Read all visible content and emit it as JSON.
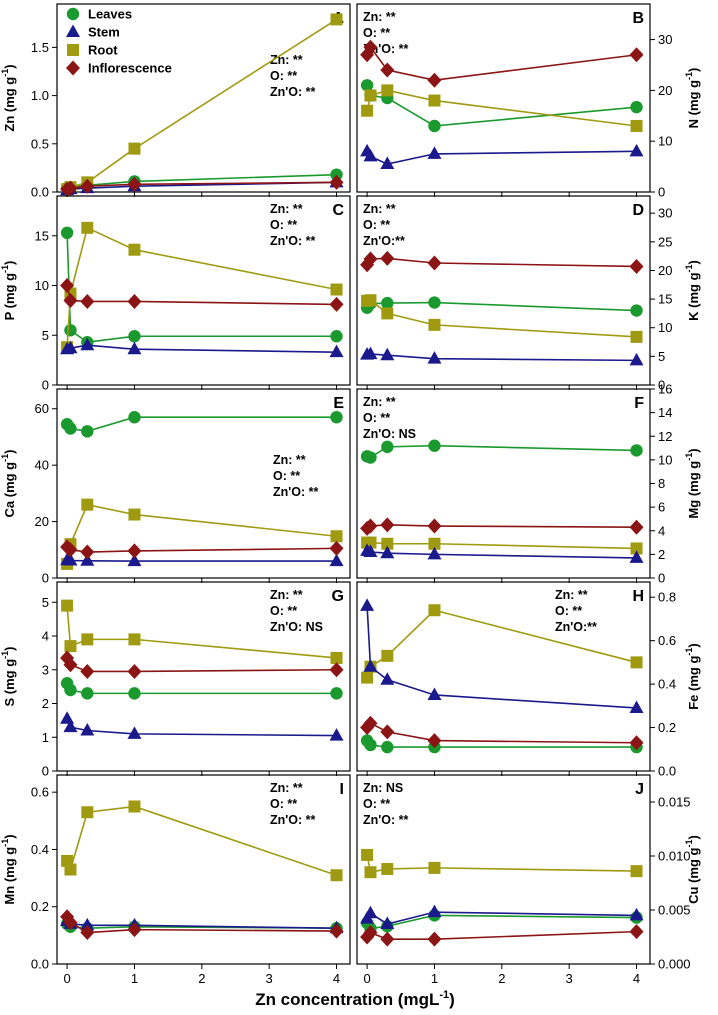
{
  "figure": {
    "xlabel": "Zn concentration (mgL",
    "xlabel_sup": "-1",
    "xlabel_close": ")",
    "x_ticks": [
      0,
      1,
      2,
      3,
      4
    ],
    "xlim": [
      -0.15,
      4.2
    ]
  },
  "legend": [
    {
      "series": "Leaves",
      "label": "Leaves",
      "color": "#1a9a2e",
      "marker": "circle"
    },
    {
      "series": "Stem",
      "label": "Stem",
      "color": "#1a1a8c",
      "marker": "triangle"
    },
    {
      "series": "Root",
      "label": "Root",
      "color": "#a09a10",
      "marker": "square"
    },
    {
      "series": "Inflorescence",
      "label": "Inflorescence",
      "color": "#8b1414",
      "marker": "diamond"
    }
  ],
  "chart_data": [
    {
      "type": "line",
      "panel": "A",
      "ylabel": "Zn (mg g",
      "ylabel_sup": "-1",
      "ylabel_close": ")",
      "axis_side": "left",
      "ylim": [
        0,
        1.95
      ],
      "yticks": [
        0.0,
        0.5,
        1.0,
        1.5
      ],
      "ytick_labels": [
        "0.0",
        "0.5",
        "1.0",
        "1.5"
      ],
      "stats": [
        "Zn: **",
        "O: **",
        "Zn'O: **"
      ],
      "stats_pos": "middle-right",
      "x": [
        0,
        0.05,
        0.3,
        1,
        4
      ],
      "series": [
        {
          "name": "Leaves",
          "values": [
            0.04,
            0.05,
            0.07,
            0.11,
            0.18
          ]
        },
        {
          "name": "Stem",
          "values": [
            0.02,
            0.03,
            0.04,
            0.06,
            0.1
          ]
        },
        {
          "name": "Root",
          "values": [
            0.03,
            0.05,
            0.1,
            0.45,
            1.79
          ]
        },
        {
          "name": "Inflorescence",
          "values": [
            0.03,
            0.04,
            0.06,
            0.08,
            0.1
          ]
        }
      ]
    },
    {
      "type": "line",
      "panel": "B",
      "ylabel": "N (mg g",
      "ylabel_sup": "-1",
      "ylabel_close": ")",
      "axis_side": "right",
      "ylim": [
        0,
        37
      ],
      "yticks": [
        0,
        10,
        20,
        30
      ],
      "ytick_labels": [
        "0",
        "10",
        "20",
        "30"
      ],
      "stats": [
        "Zn: **",
        "O: **",
        "Zn'O: **"
      ],
      "stats_pos": "top-left",
      "x": [
        0,
        0.05,
        0.3,
        1,
        4
      ],
      "series": [
        {
          "name": "Leaves",
          "values": [
            21,
            19,
            18.5,
            13,
            16.7
          ]
        },
        {
          "name": "Stem",
          "values": [
            8,
            7,
            5.5,
            7.5,
            8
          ]
        },
        {
          "name": "Root",
          "values": [
            16,
            19,
            20,
            18,
            13
          ]
        },
        {
          "name": "Inflorescence",
          "values": [
            27,
            28.5,
            24,
            22,
            27
          ]
        }
      ]
    },
    {
      "type": "line",
      "panel": "C",
      "ylabel": "P (mg g",
      "ylabel_sup": "-1",
      "ylabel_close": ")",
      "axis_side": "left",
      "ylim": [
        0,
        19
      ],
      "yticks": [
        0,
        5,
        10,
        15
      ],
      "ytick_labels": [
        "0",
        "5",
        "10",
        "15"
      ],
      "stats": [
        "Zn: **",
        "O: **",
        "Zn'O: **"
      ],
      "stats_pos": "top-right",
      "x": [
        0,
        0.05,
        0.3,
        1,
        4
      ],
      "series": [
        {
          "name": "Leaves",
          "values": [
            15.3,
            5.5,
            4.3,
            4.9,
            4.9
          ]
        },
        {
          "name": "Stem",
          "values": [
            3.6,
            3.7,
            4.0,
            3.6,
            3.3
          ]
        },
        {
          "name": "Root",
          "values": [
            3.8,
            9.2,
            15.8,
            13.6,
            9.6
          ]
        },
        {
          "name": "Inflorescence",
          "values": [
            10.0,
            8.5,
            8.4,
            8.4,
            8.1
          ]
        }
      ]
    },
    {
      "type": "line",
      "panel": "D",
      "ylabel": "K (mg g",
      "ylabel_sup": "-1",
      "ylabel_close": ")",
      "axis_side": "right",
      "ylim": [
        0,
        33
      ],
      "yticks": [
        0,
        5,
        10,
        15,
        20,
        25,
        30
      ],
      "ytick_labels": [
        "0",
        "5",
        "10",
        "15",
        "20",
        "25",
        "30"
      ],
      "stats": [
        "Zn: **",
        "O: **",
        "Zn'O:**"
      ],
      "stats_pos": "top-left",
      "x": [
        0,
        0.05,
        0.3,
        1,
        4
      ],
      "series": [
        {
          "name": "Leaves",
          "values": [
            13.5,
            14.2,
            14.3,
            14.4,
            13
          ]
        },
        {
          "name": "Stem",
          "values": [
            5.3,
            5.4,
            5.2,
            4.6,
            4.3
          ]
        },
        {
          "name": "Root",
          "values": [
            14.7,
            14.8,
            12.5,
            10.5,
            8.4
          ]
        },
        {
          "name": "Inflorescence",
          "values": [
            21,
            22,
            22.1,
            21.3,
            20.7
          ]
        }
      ]
    },
    {
      "type": "line",
      "panel": "E",
      "ylabel": "Ca (mg g",
      "ylabel_sup": "-1",
      "ylabel_close": ")",
      "axis_side": "left",
      "ylim": [
        0,
        67
      ],
      "yticks": [
        0,
        20,
        40,
        60
      ],
      "ytick_labels": [
        "0",
        "20",
        "40",
        "60"
      ],
      "stats": [
        "Zn: **",
        "O: **",
        "Zn'O: **"
      ],
      "stats_pos": "middle-right",
      "x": [
        0,
        0.05,
        0.3,
        1,
        4
      ],
      "series": [
        {
          "name": "Leaves",
          "values": [
            54.5,
            53,
            52,
            57,
            57
          ]
        },
        {
          "name": "Stem",
          "values": [
            6.3,
            6.2,
            6.1,
            6.0,
            6.0
          ]
        },
        {
          "name": "Root",
          "values": [
            5.0,
            12,
            26,
            22.5,
            14.8
          ]
        },
        {
          "name": "Inflorescence",
          "values": [
            11,
            10,
            9.2,
            9.6,
            10.5
          ]
        }
      ]
    },
    {
      "type": "line",
      "panel": "F",
      "ylabel": "Mg (mg g",
      "ylabel_sup": "-1",
      "ylabel_close": ")",
      "axis_side": "right",
      "ylim": [
        0,
        16
      ],
      "yticks": [
        0,
        2,
        4,
        6,
        8,
        10,
        12,
        14,
        16
      ],
      "ytick_labels": [
        "0",
        "2",
        "4",
        "6",
        "8",
        "10",
        "12",
        "14",
        "16"
      ],
      "stats": [
        "Zn: **",
        "O: **",
        "Zn'O: NS"
      ],
      "stats_pos": "top-left",
      "x": [
        0,
        0.05,
        0.3,
        1,
        4
      ],
      "series": [
        {
          "name": "Leaves",
          "values": [
            10.3,
            10.2,
            11.1,
            11.2,
            10.8
          ]
        },
        {
          "name": "Stem",
          "values": [
            2.3,
            2.2,
            2.1,
            2.0,
            1.7
          ]
        },
        {
          "name": "Root",
          "values": [
            3.0,
            3.0,
            2.9,
            2.9,
            2.5
          ]
        },
        {
          "name": "Inflorescence",
          "values": [
            4.2,
            4.4,
            4.5,
            4.4,
            4.3
          ]
        }
      ]
    },
    {
      "type": "line",
      "panel": "G",
      "ylabel": "S (mg g",
      "ylabel_sup": "-1",
      "ylabel_close": ")",
      "axis_side": "left",
      "ylim": [
        0,
        5.6
      ],
      "yticks": [
        0,
        1,
        2,
        3,
        4,
        5
      ],
      "ytick_labels": [
        "0",
        "1",
        "2",
        "3",
        "4",
        "5"
      ],
      "stats": [
        "Zn: **",
        "O: **",
        "Zn'O: NS"
      ],
      "stats_pos": "top-right",
      "x": [
        0,
        0.05,
        0.3,
        1,
        4
      ],
      "series": [
        {
          "name": "Leaves",
          "values": [
            2.6,
            2.4,
            2.3,
            2.3,
            2.3
          ]
        },
        {
          "name": "Stem",
          "values": [
            1.55,
            1.3,
            1.2,
            1.1,
            1.05
          ]
        },
        {
          "name": "Root",
          "values": [
            4.9,
            3.7,
            3.9,
            3.9,
            3.35
          ]
        },
        {
          "name": "Inflorescence",
          "values": [
            3.35,
            3.15,
            2.95,
            2.95,
            3.0
          ]
        }
      ]
    },
    {
      "type": "line",
      "panel": "H",
      "ylabel": "Fe (mg g",
      "ylabel_sup": "-1",
      "ylabel_close": ")",
      "axis_side": "right",
      "ylim": [
        0,
        0.87
      ],
      "yticks": [
        0.0,
        0.2,
        0.4,
        0.6,
        0.8
      ],
      "ytick_labels": [
        "0.0",
        "0.2",
        "0.4",
        "0.6",
        "0.8"
      ],
      "stats": [
        "Zn: **",
        "O: **",
        "Zn'O:**"
      ],
      "stats_pos": "top-right",
      "x": [
        0,
        0.05,
        0.3,
        1,
        4
      ],
      "series": [
        {
          "name": "Leaves",
          "values": [
            0.14,
            0.12,
            0.11,
            0.11,
            0.11
          ]
        },
        {
          "name": "Stem",
          "values": [
            0.76,
            0.48,
            0.42,
            0.35,
            0.29
          ]
        },
        {
          "name": "Root",
          "values": [
            0.43,
            0.48,
            0.53,
            0.74,
            0.5
          ]
        },
        {
          "name": "Inflorescence",
          "values": [
            0.2,
            0.22,
            0.18,
            0.14,
            0.13
          ]
        }
      ]
    },
    {
      "type": "line",
      "panel": "I",
      "ylabel": "Mn (mg g",
      "ylabel_sup": "-1",
      "ylabel_close": ")",
      "axis_side": "left",
      "ylim": [
        0,
        0.66
      ],
      "yticks": [
        0.0,
        0.2,
        0.4,
        0.6
      ],
      "ytick_labels": [
        "0.0",
        "0.2",
        "0.4",
        "0.6"
      ],
      "stats": [
        "Zn: **",
        "O: **",
        "Zn'O: **"
      ],
      "stats_pos": "top-right",
      "x": [
        0,
        0.05,
        0.3,
        1,
        4
      ],
      "series": [
        {
          "name": "Leaves",
          "values": [
            0.14,
            0.13,
            0.125,
            0.13,
            0.125
          ]
        },
        {
          "name": "Stem",
          "values": [
            0.15,
            0.14,
            0.135,
            0.135,
            0.125
          ]
        },
        {
          "name": "Root",
          "values": [
            0.36,
            0.33,
            0.53,
            0.55,
            0.31
          ]
        },
        {
          "name": "Inflorescence",
          "values": [
            0.165,
            0.145,
            0.11,
            0.12,
            0.115
          ]
        }
      ]
    },
    {
      "type": "line",
      "panel": "J",
      "ylabel": "Cu (mg g",
      "ylabel_sup": "-1",
      "ylabel_close": ")",
      "axis_side": "right",
      "ylim": [
        0,
        0.0175
      ],
      "yticks": [
        0.0,
        0.005,
        0.01,
        0.015
      ],
      "ytick_labels": [
        "0.000",
        "0.005",
        "0.010",
        "0.015"
      ],
      "stats": [
        "Zn: NS",
        "O: **",
        "Zn'O: **"
      ],
      "stats_pos": "top-left",
      "x": [
        0,
        0.05,
        0.3,
        1,
        4
      ],
      "series": [
        {
          "name": "Leaves",
          "values": [
            0.0038,
            0.0033,
            0.0035,
            0.0045,
            0.0043
          ]
        },
        {
          "name": "Stem",
          "values": [
            0.0042,
            0.0047,
            0.0037,
            0.0048,
            0.0045
          ]
        },
        {
          "name": "Root",
          "values": [
            0.0101,
            0.0085,
            0.0088,
            0.0089,
            0.0086
          ]
        },
        {
          "name": "Inflorescence",
          "values": [
            0.0025,
            0.0029,
            0.0023,
            0.0023,
            0.003
          ]
        }
      ]
    }
  ]
}
